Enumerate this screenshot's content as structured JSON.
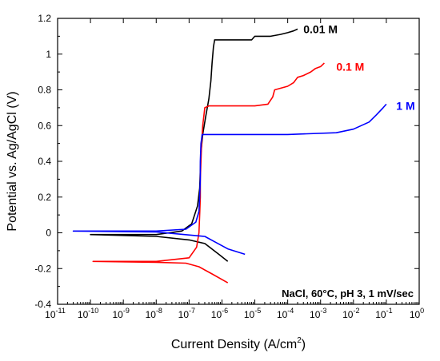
{
  "chart_data": {
    "type": "line",
    "xlabel": "Current Density (A/cm",
    "xlabel_sup": "2",
    "xlabel_tail": ")",
    "ylabel": "Potential vs. Ag/AgCl (V)",
    "x_scale": "log",
    "xlim_exp": [
      -11,
      0
    ],
    "ylim": [
      -0.4,
      1.2
    ],
    "x_tick_base": "10",
    "x_tick_exponents": [
      "-11",
      "-10",
      "-9",
      "-8",
      "-7",
      "-6",
      "-5",
      "-4",
      "-3",
      "-2",
      "-1",
      "0"
    ],
    "y_ticks": [
      "-0.4",
      "-0.2",
      "0",
      "0.2",
      "0.4",
      "0.6",
      "0.8",
      "1",
      "1.2"
    ],
    "annotation": "NaCl, 60°C, pH 3, 1 mV/sec",
    "legend_placement": "inline-labels",
    "series": [
      {
        "name": "0.01 M",
        "color": "#000000",
        "points": [
          [
            1.5e-06,
            -0.16
          ],
          [
            8e-07,
            -0.12
          ],
          [
            3e-07,
            -0.06
          ],
          [
            1e-07,
            -0.04
          ],
          [
            1e-08,
            -0.02
          ],
          [
            1e-10,
            -0.01
          ],
          [
            1e-08,
            -0.01
          ],
          [
            6e-08,
            0.01
          ],
          [
            1.2e-07,
            0.05
          ],
          [
            1.8e-07,
            0.15
          ],
          [
            2.1e-07,
            0.25
          ],
          [
            2.2e-07,
            0.35
          ],
          [
            2.3e-07,
            0.45
          ],
          [
            2.6e-07,
            0.55
          ],
          [
            3.2e-07,
            0.65
          ],
          [
            4e-07,
            0.75
          ],
          [
            4.6e-07,
            0.85
          ],
          [
            5e-07,
            0.95
          ],
          [
            5.5e-07,
            1.04
          ],
          [
            6e-07,
            1.08
          ],
          [
            8e-06,
            1.08
          ],
          [
            1e-05,
            1.1
          ],
          [
            3e-05,
            1.1
          ],
          [
            6e-05,
            1.11
          ],
          [
            0.0001,
            1.12
          ],
          [
            0.00015,
            1.13
          ],
          [
            0.0002,
            1.14
          ]
        ]
      },
      {
        "name": "0.1 M",
        "color": "#ff0000",
        "points": [
          [
            1.5e-06,
            -0.28
          ],
          [
            5e-07,
            -0.23
          ],
          [
            2e-07,
            -0.19
          ],
          [
            8e-08,
            -0.17
          ],
          [
            1e-08,
            -0.165
          ],
          [
            1.2e-10,
            -0.16
          ],
          [
            1e-08,
            -0.16
          ],
          [
            1e-07,
            -0.14
          ],
          [
            1.7e-07,
            -0.08
          ],
          [
            2e-07,
            0.0
          ],
          [
            2.1e-07,
            0.1
          ],
          [
            2.2e-07,
            0.2
          ],
          [
            2.2e-07,
            0.3
          ],
          [
            2.3e-07,
            0.4
          ],
          [
            2.4e-07,
            0.5
          ],
          [
            2.6e-07,
            0.6
          ],
          [
            3e-07,
            0.7
          ],
          [
            4e-07,
            0.71
          ],
          [
            1e-05,
            0.71
          ],
          [
            2.5e-05,
            0.72
          ],
          [
            3.5e-05,
            0.76
          ],
          [
            4e-05,
            0.8
          ],
          [
            0.0001,
            0.82
          ],
          [
            0.00015,
            0.84
          ],
          [
            0.0002,
            0.87
          ],
          [
            0.0003,
            0.88
          ],
          [
            0.0005,
            0.9
          ],
          [
            0.0007,
            0.92
          ],
          [
            0.001,
            0.93
          ],
          [
            0.0013,
            0.95
          ]
        ]
      },
      {
        "name": "1 M",
        "color": "#0000ff",
        "points": [
          [
            5e-06,
            -0.12
          ],
          [
            1.5e-06,
            -0.09
          ],
          [
            6e-07,
            -0.05
          ],
          [
            3e-07,
            -0.02
          ],
          [
            1e-08,
            0.005
          ],
          [
            3e-11,
            0.01
          ],
          [
            1e-08,
            0.01
          ],
          [
            8e-08,
            0.02
          ],
          [
            1.6e-07,
            0.06
          ],
          [
            2e-07,
            0.12
          ],
          [
            2.1e-07,
            0.2
          ],
          [
            2.2e-07,
            0.3
          ],
          [
            2.2e-07,
            0.4
          ],
          [
            2.3e-07,
            0.5
          ],
          [
            2.5e-07,
            0.55
          ],
          [
            0.0001,
            0.55
          ],
          [
            0.003,
            0.56
          ],
          [
            0.01,
            0.58
          ],
          [
            0.03,
            0.62
          ],
          [
            0.05,
            0.66
          ],
          [
            0.08,
            0.7
          ],
          [
            0.1,
            0.72
          ]
        ]
      }
    ],
    "series_labels": [
      {
        "text": "0.01 M",
        "color": "#000000",
        "x": 0.0003,
        "y": 1.14
      },
      {
        "text": "0.1 M",
        "color": "#ff0000",
        "x": 0.003,
        "y": 0.93
      },
      {
        "text": "1 M",
        "color": "#0000ff",
        "x": 0.2,
        "y": 0.71
      }
    ]
  }
}
